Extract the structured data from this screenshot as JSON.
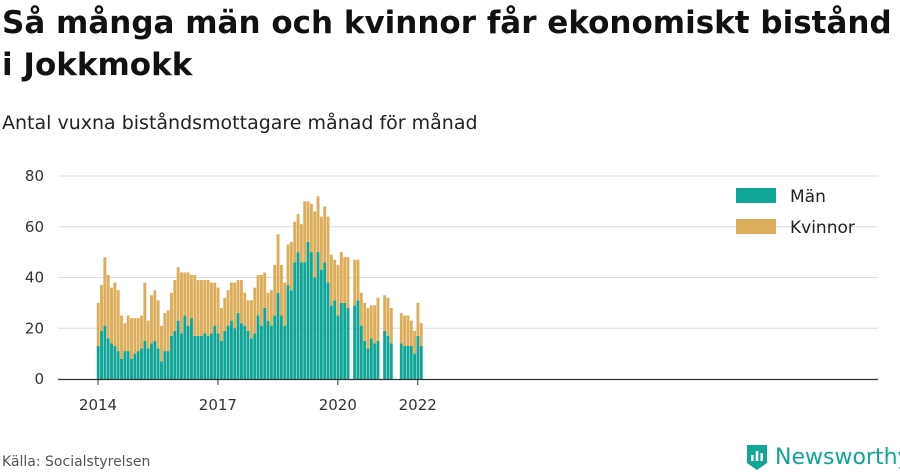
{
  "title": "Så många män och kvinnor får ekonomiskt bistånd i Jokkmokk",
  "subtitle": "Antal vuxna biståndsmottagare månad för månad",
  "source": "Källa: Socialstyrelsen",
  "brand": {
    "name": "Newsworthy",
    "icon": "newsworthy-logo-icon"
  },
  "colors": {
    "men": "#11a598",
    "women": "#dcae5b",
    "grid": "#dddddd",
    "axis": "#333333"
  },
  "chart_data": {
    "type": "bar",
    "stacked": true,
    "x_start": "2014-01",
    "interval": "month",
    "x_ticks": [
      "2014",
      "2017",
      "2020",
      "2022"
    ],
    "y_ticks": [
      "0",
      "20",
      "40",
      "60",
      "80"
    ],
    "ylim": [
      0,
      80
    ],
    "grid": true,
    "legend_position": "top-right",
    "series": [
      {
        "name": "Män",
        "values": [
          13,
          19,
          21,
          16,
          14,
          13,
          11,
          8,
          11,
          11,
          8,
          10,
          11,
          12,
          15,
          12,
          14,
          15,
          12,
          7,
          11,
          11,
          17,
          19,
          23,
          18,
          25,
          21,
          24,
          17,
          17,
          17,
          18,
          17,
          18,
          21,
          18,
          15,
          19,
          21,
          23,
          20,
          26,
          22,
          21,
          19,
          16,
          18,
          25,
          21,
          28,
          23,
          21,
          25,
          34,
          25,
          21,
          37,
          35,
          46,
          50,
          46,
          46,
          54,
          50,
          40,
          50,
          43,
          46,
          38,
          29,
          31,
          25,
          30,
          30,
          28,
          null,
          29,
          31,
          21,
          15,
          12,
          16,
          14,
          15,
          null,
          19,
          17,
          14,
          null,
          null,
          14,
          13,
          13,
          13,
          10,
          17,
          13
        ]
      },
      {
        "name": "Kvinnor",
        "values": [
          17,
          18,
          27,
          25,
          22,
          25,
          24,
          17,
          11,
          14,
          16,
          14,
          13,
          13,
          23,
          11,
          19,
          20,
          19,
          14,
          15,
          16,
          17,
          20,
          21,
          24,
          17,
          21,
          17,
          24,
          22,
          22,
          21,
          22,
          20,
          17,
          18,
          13,
          13,
          14,
          15,
          18,
          13,
          17,
          13,
          12,
          15,
          18,
          16,
          20,
          14,
          11,
          14,
          20,
          23,
          20,
          17,
          16,
          19,
          16,
          15,
          15,
          24,
          16,
          19,
          26,
          22,
          21,
          22,
          26,
          20,
          16,
          20,
          20,
          18,
          20,
          null,
          18,
          16,
          13,
          15,
          16,
          13,
          15,
          17,
          null,
          14,
          15,
          14,
          null,
          null,
          12,
          12,
          12,
          10,
          9,
          13,
          9
        ]
      }
    ]
  }
}
